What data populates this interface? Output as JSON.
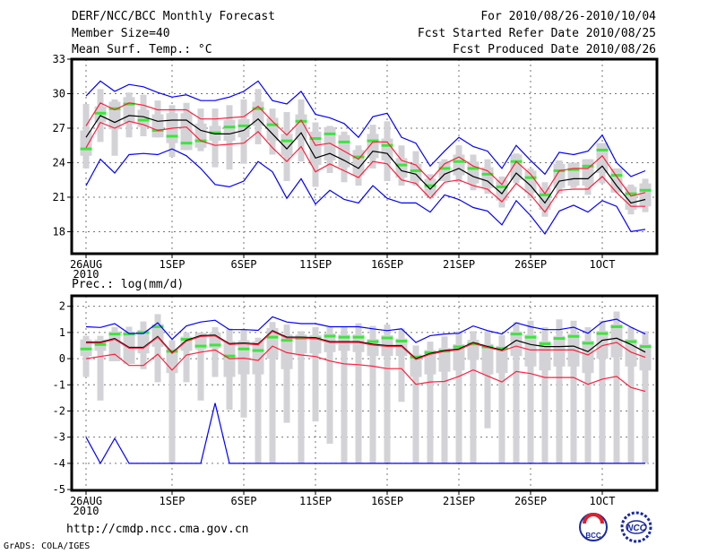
{
  "header": {
    "title": "DERF/NCC/BCC Monthly Forecast",
    "member_size": "Member Size=40",
    "variable1": "Mean Surf. Temp.: °C",
    "period": "For 2010/08/26-2010/10/04",
    "start_date": "Fcst Started Refer Date 2010/08/25",
    "produced_date": "Fcst Produced Date 2010/08/26"
  },
  "footer": {
    "url": "http://cmdp.ncc.cma.gov.cn",
    "credit": "GrADS: COLA/IGES",
    "logo_bcc": "BCC",
    "logo_ncc": "NCC"
  },
  "colors": {
    "mean": "#000000",
    "spread": "#ff1f3a",
    "extreme": "#0000ff",
    "median": "#3ce63c",
    "box": "#d3d3d7"
  },
  "chart_data": [
    {
      "type": "line",
      "title": "Mean Surf. Temp.: °C",
      "ylabel": "°C",
      "ylim": [
        16.1,
        33
      ],
      "yticks": [
        33,
        30,
        27,
        24,
        21,
        18
      ],
      "x_ticks": [
        {
          "day": 0,
          "label": "26AUG"
        },
        {
          "day": 6,
          "label": "1SEP"
        },
        {
          "day": 11,
          "label": "6SEP"
        },
        {
          "day": 16,
          "label": "11SEP"
        },
        {
          "day": 21,
          "label": "16SEP"
        },
        {
          "day": 26,
          "label": "21SEP"
        },
        {
          "day": 31,
          "label": "26SEP"
        },
        {
          "day": 36,
          "label": "1OCT"
        }
      ],
      "year_label": "2010",
      "grid": true,
      "n_days": 40,
      "series": [
        {
          "name": "ensemble_mean",
          "color": "#000000",
          "values": [
            26.2,
            28.1,
            27.5,
            28.1,
            28.0,
            27.6,
            27.7,
            27.7,
            26.8,
            26.5,
            26.5,
            26.8,
            27.8,
            26.5,
            25.2,
            26.6,
            24.4,
            24.8,
            24.2,
            23.5,
            25.0,
            24.8,
            23.3,
            23.0,
            21.7,
            23.0,
            23.5,
            22.8,
            22.4,
            21.3,
            23.1,
            22.0,
            20.5,
            22.4,
            22.6,
            22.6,
            23.7,
            22.0,
            20.5,
            20.8
          ]
        },
        {
          "name": "spread_upper",
          "color": "#ff1f3a",
          "values": [
            27.2,
            29.2,
            28.6,
            29.2,
            29.0,
            28.6,
            28.6,
            28.6,
            27.8,
            27.8,
            27.9,
            28.0,
            28.9,
            27.6,
            26.4,
            27.7,
            25.5,
            25.7,
            25.0,
            24.3,
            25.8,
            25.8,
            24.2,
            23.8,
            22.5,
            23.9,
            24.5,
            23.7,
            23.3,
            22.1,
            24.1,
            23.0,
            21.3,
            23.3,
            23.5,
            23.5,
            24.6,
            22.8,
            21.1,
            21.4
          ]
        },
        {
          "name": "spread_lower",
          "color": "#ff1f3a",
          "values": [
            25.3,
            27.5,
            27.0,
            27.6,
            27.3,
            26.8,
            27.0,
            27.1,
            25.9,
            25.5,
            25.6,
            25.7,
            26.7,
            25.3,
            24.1,
            25.4,
            23.2,
            23.9,
            23.3,
            22.7,
            24.1,
            23.9,
            22.5,
            22.2,
            20.9,
            22.3,
            22.5,
            22.0,
            21.7,
            20.6,
            22.2,
            21.2,
            19.7,
            21.6,
            21.7,
            21.7,
            22.8,
            21.4,
            20.2,
            20.2
          ]
        },
        {
          "name": "member_max",
          "color": "#0000ff",
          "values": [
            29.8,
            31.1,
            30.2,
            30.8,
            30.6,
            30.1,
            29.7,
            29.9,
            29.4,
            29.4,
            29.7,
            30.2,
            31.1,
            29.4,
            29.1,
            30.2,
            28.2,
            27.9,
            27.4,
            26.2,
            28.0,
            28.3,
            26.2,
            25.7,
            23.7,
            25.0,
            26.2,
            25.4,
            25.0,
            23.5,
            25.5,
            24.2,
            23.0,
            24.9,
            24.7,
            25.0,
            26.4,
            24.0,
            22.8,
            23.3
          ]
        },
        {
          "name": "member_min",
          "color": "#0000ff",
          "values": [
            22.0,
            24.3,
            23.1,
            24.7,
            24.8,
            24.7,
            25.2,
            24.6,
            23.5,
            22.1,
            21.9,
            22.4,
            24.1,
            23.2,
            20.9,
            22.6,
            20.4,
            21.6,
            20.8,
            20.5,
            22.0,
            20.9,
            20.5,
            20.5,
            19.7,
            21.2,
            20.8,
            20.1,
            19.8,
            18.6,
            20.7,
            19.4,
            17.8,
            19.8,
            20.3,
            19.7,
            20.7,
            20.2,
            18.0,
            18.2
          ]
        }
      ],
      "median": [
        25.2,
        28.3,
        28.7,
        29.1,
        27.7,
        26.8,
        26.3,
        25.7,
        25.9,
        26.6,
        27.1,
        27.2,
        28.7,
        27.3,
        25.9,
        27.6,
        26.1,
        26.5,
        25.8,
        24.5,
        25.9,
        25.5,
        23.8,
        23.3,
        22.0,
        23.5,
        24.1,
        23.5,
        23.0,
        21.9,
        24.1,
        22.7,
        21.2,
        23.3,
        23.4,
        23.7,
        25.1,
        22.9,
        21.3,
        21.6
      ],
      "box": {
        "whisker_low": [
          23.5,
          25.8,
          24.6,
          26.2,
          26.3,
          26.2,
          24.5,
          26.1,
          25.0,
          23.6,
          23.4,
          23.9,
          25.6,
          24.7,
          22.4,
          24.1,
          21.9,
          23.1,
          22.3,
          22.0,
          23.5,
          22.4,
          22.0,
          22.0,
          21.2,
          22.7,
          22.3,
          21.6,
          21.3,
          20.1,
          22.2,
          20.9,
          19.3,
          21.3,
          21.8,
          21.2,
          22.2,
          21.7,
          19.5,
          19.7
        ],
        "box_low": [
          24.6,
          27.5,
          26.9,
          27.5,
          27.1,
          26.2,
          25.7,
          25.1,
          25.3,
          25.9,
          25.9,
          26.2,
          27.2,
          25.9,
          24.6,
          26.0,
          23.8,
          24.2,
          23.6,
          22.9,
          24.4,
          24.2,
          22.7,
          22.4,
          21.1,
          22.4,
          22.9,
          22.2,
          21.8,
          20.7,
          22.5,
          21.4,
          19.9,
          21.8,
          22.0,
          22.0,
          23.1,
          21.4,
          19.9,
          20.2
        ],
        "box_high": [
          26.8,
          28.9,
          29.3,
          29.7,
          28.6,
          28.2,
          28.3,
          28.3,
          27.4,
          27.2,
          27.7,
          27.8,
          29.3,
          27.9,
          26.5,
          28.2,
          26.7,
          27.1,
          26.4,
          25.1,
          26.5,
          26.1,
          24.4,
          23.9,
          22.6,
          24.1,
          24.7,
          24.1,
          23.6,
          22.5,
          24.7,
          23.3,
          21.8,
          23.9,
          24.0,
          24.3,
          25.7,
          23.5,
          21.9,
          22.2
        ],
        "whisker_high": [
          29.1,
          30.4,
          29.5,
          30.1,
          29.9,
          29.4,
          29.0,
          29.2,
          28.7,
          28.7,
          29.0,
          29.5,
          30.4,
          28.7,
          28.4,
          29.5,
          27.5,
          27.2,
          26.7,
          25.5,
          27.3,
          27.6,
          25.5,
          25.0,
          23.0,
          24.3,
          25.5,
          24.7,
          24.3,
          22.8,
          24.8,
          23.5,
          22.3,
          24.2,
          24.0,
          24.3,
          25.7,
          23.3,
          22.1,
          22.6
        ]
      }
    },
    {
      "type": "line",
      "title": "Prec.: log(mm/d)",
      "ylabel": "log(mm/d)",
      "ylim": [
        -5,
        2.4
      ],
      "yticks": [
        2,
        1,
        0,
        -1,
        -2,
        -3,
        -4,
        -5
      ],
      "x_ticks": [
        {
          "day": 0,
          "label": "26AUG"
        },
        {
          "day": 6,
          "label": "1SEP"
        },
        {
          "day": 11,
          "label": "6SEP"
        },
        {
          "day": 16,
          "label": "11SEP"
        },
        {
          "day": 21,
          "label": "16SEP"
        },
        {
          "day": 26,
          "label": "21SEP"
        },
        {
          "day": 31,
          "label": "26SEP"
        },
        {
          "day": 36,
          "label": "1OCT"
        }
      ],
      "year_label": "2010",
      "grid": true,
      "n_days": 40,
      "series": [
        {
          "name": "ensemble_mean",
          "color": "#000000",
          "values": [
            0.63,
            0.63,
            0.77,
            0.43,
            0.43,
            0.85,
            0.23,
            0.7,
            0.88,
            0.9,
            0.57,
            0.6,
            0.56,
            1.07,
            0.82,
            0.82,
            0.8,
            0.65,
            0.65,
            0.65,
            0.55,
            0.5,
            0.5,
            0.0,
            0.2,
            0.31,
            0.37,
            0.62,
            0.46,
            0.33,
            0.7,
            0.54,
            0.46,
            0.46,
            0.48,
            0.27,
            0.7,
            0.78,
            0.54,
            0.25
          ]
        },
        {
          "name": "spread_upper",
          "color": "#ff1f3a",
          "values": [
            0.6,
            0.6,
            0.74,
            0.4,
            0.4,
            0.82,
            0.2,
            0.67,
            0.85,
            0.87,
            0.54,
            0.57,
            0.53,
            1.04,
            0.79,
            0.79,
            0.77,
            0.62,
            0.62,
            0.62,
            0.52,
            0.47,
            0.47,
            -0.03,
            0.17,
            0.28,
            0.34,
            0.59,
            0.43,
            0.3,
            0.48,
            0.33,
            0.33,
            0.33,
            0.33,
            0.14,
            0.5,
            0.62,
            0.25,
            0.05
          ]
        },
        {
          "name": "spread_lower",
          "color": "#ff1f3a",
          "values": [
            0,
            0.08,
            0.17,
            -0.26,
            -0.26,
            0.17,
            -0.44,
            0.14,
            0.25,
            0.33,
            0,
            0.02,
            -0.07,
            0.48,
            0.23,
            0.14,
            0.08,
            -0.09,
            -0.2,
            -0.23,
            -0.29,
            -0.38,
            -0.38,
            -0.98,
            -0.89,
            -0.87,
            -0.68,
            -0.43,
            -0.66,
            -0.89,
            -0.49,
            -0.57,
            -0.72,
            -0.72,
            -0.72,
            -0.98,
            -0.78,
            -0.68,
            -1.1,
            -1.25
          ]
        },
        {
          "name": "member_max",
          "color": "#0000ff",
          "values": [
            1.22,
            1.19,
            1.34,
            0.96,
            0.96,
            1.37,
            0.74,
            1.25,
            1.4,
            1.47,
            1.11,
            1.11,
            1.08,
            1.6,
            1.4,
            1.34,
            1.34,
            1.22,
            1.22,
            1.22,
            1.14,
            1.07,
            1.14,
            0.62,
            0.88,
            0.94,
            0.97,
            1.25,
            1.07,
            0.94,
            1.37,
            1.22,
            1.11,
            1.11,
            1.2,
            0.97,
            1.4,
            1.51,
            1.2,
            0.94
          ]
        },
        {
          "name": "member_min",
          "color": "#0000ff",
          "values": [
            -3,
            -4,
            -3.05,
            -4,
            -4,
            -4,
            -4,
            -4,
            -4,
            -1.7,
            -4,
            -4,
            -4,
            -4,
            -4,
            -4,
            -4,
            -4,
            -4,
            -4,
            -4,
            -4,
            -4,
            -4,
            -4,
            -4,
            -4,
            -4,
            -4,
            -4,
            -4,
            -4,
            -4,
            -4,
            -4,
            -4,
            -4,
            -4,
            -4,
            -4
          ]
        }
      ],
      "median": [
        0.37,
        0.54,
        0.94,
        0.94,
        1.0,
        1.22,
        0.28,
        0.74,
        0.48,
        0.52,
        0.1,
        0.37,
        0.31,
        0.82,
        0.7,
        0.78,
        0.78,
        0.86,
        0.82,
        0.82,
        0.65,
        0.79,
        0.67,
        0.06,
        0.23,
        0.29,
        0.45,
        0.56,
        0.45,
        0.39,
        0.94,
        0.82,
        0.57,
        0.77,
        0.85,
        0.59,
        0.96,
        1.22,
        0.65,
        0.46
      ],
      "box": {
        "whisker_low": [
          -0.7,
          -1.6,
          -0.1,
          -0.2,
          -0.4,
          -0.9,
          -4,
          -0.9,
          -1.6,
          -0.7,
          -1.95,
          -2.25,
          -4,
          -4,
          -2.45,
          -4,
          -2.4,
          -3.25,
          -4,
          -4,
          -4,
          -4,
          -1.65,
          -4,
          -4,
          -4,
          -4,
          -4,
          -2.66,
          -4,
          -4,
          -4,
          -4,
          -4,
          -4,
          -4,
          -4,
          -4,
          -4,
          -4
        ],
        "box_low": [
          0.1,
          0.3,
          -0.1,
          -0.2,
          0.2,
          0.45,
          -0.55,
          0.3,
          0.35,
          0.4,
          -0.7,
          -0.6,
          -0.6,
          0,
          -0.4,
          0.2,
          0.2,
          0.25,
          0.3,
          0.25,
          0.1,
          0.1,
          0.1,
          -0.7,
          -0.6,
          -0.5,
          -0.45,
          -0.05,
          -0.6,
          -0.55,
          0.1,
          -0.3,
          -0.45,
          -0.3,
          -0.3,
          -0.55,
          0,
          0.05,
          -0.3,
          -0.45
        ],
        "box_high": [
          0.73,
          0.73,
          1.04,
          1.04,
          1.1,
          1.32,
          0.38,
          0.84,
          0.98,
          1.0,
          0.67,
          0.7,
          0.66,
          1.17,
          0.92,
          0.92,
          0.9,
          0.96,
          0.92,
          0.92,
          0.75,
          0.89,
          0.77,
          0.16,
          0.33,
          0.41,
          0.55,
          0.72,
          0.56,
          0.49,
          1.04,
          0.92,
          0.67,
          0.87,
          0.95,
          0.69,
          1.06,
          1.32,
          0.75,
          0.56
        ],
        "whisker_high": [
          0.87,
          0.87,
          1.2,
          1.22,
          1.42,
          1.7,
          0.7,
          1.0,
          1.0,
          1.2,
          1.15,
          1.13,
          0.8,
          1.4,
          1.3,
          1.05,
          1.2,
          1.2,
          1.2,
          1.35,
          1.25,
          1.3,
          1.15,
          0.5,
          0.65,
          0.85,
          1.05,
          1.05,
          1.05,
          0.9,
          1.4,
          1.45,
          1.2,
          1.5,
          1.45,
          1.2,
          1.45,
          1.8,
          1.2,
          1.05
        ]
      }
    }
  ]
}
